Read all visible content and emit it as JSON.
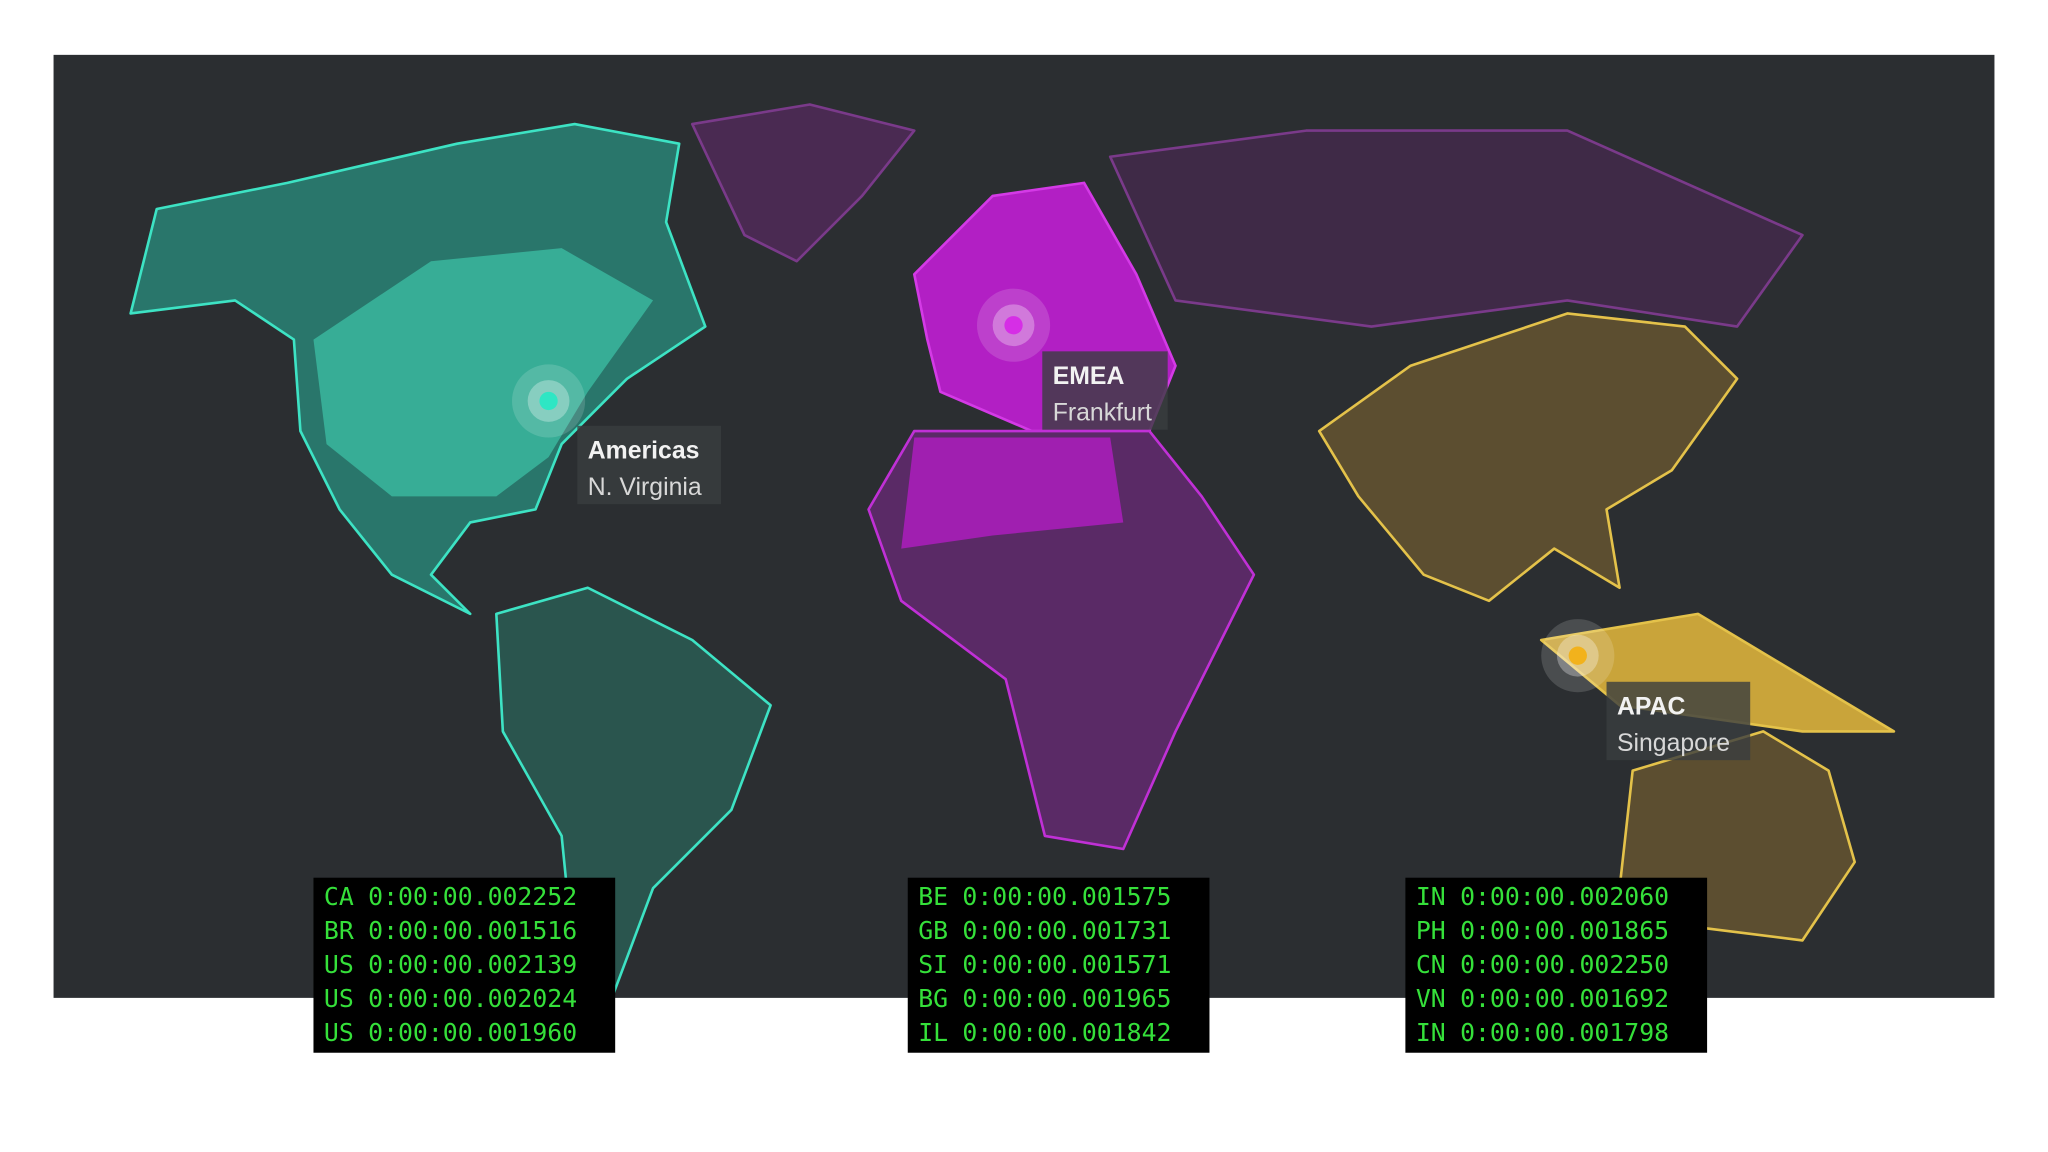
{
  "regions": [
    {
      "name": "Americas",
      "city": "N. Virginia",
      "log": [
        {
          "country": "CA",
          "time": "0:00:00.002252"
        },
        {
          "country": "BR",
          "time": "0:00:00.001516"
        },
        {
          "country": "US",
          "time": "0:00:00.002139"
        },
        {
          "country": "US",
          "time": "0:00:00.002024"
        },
        {
          "country": "US",
          "time": "0:00:00.001960"
        }
      ]
    },
    {
      "name": "EMEA",
      "city": "Frankfurt",
      "log": [
        {
          "country": "BE",
          "time": "0:00:00.001575"
        },
        {
          "country": "GB",
          "time": "0:00:00.001731"
        },
        {
          "country": "SI",
          "time": "0:00:00.001571"
        },
        {
          "country": "BG",
          "time": "0:00:00.001965"
        },
        {
          "country": "IL",
          "time": "0:00:00.001842"
        }
      ]
    },
    {
      "name": "APAC",
      "city": "Singapore",
      "log": [
        {
          "country": "IN",
          "time": "0:00:00.002060"
        },
        {
          "country": "PH",
          "time": "0:00:00.001865"
        },
        {
          "country": "CN",
          "time": "0:00:00.002250"
        },
        {
          "country": "VN",
          "time": "0:00:00.001692"
        },
        {
          "country": "IN",
          "time": "0:00:00.001798"
        }
      ]
    }
  ]
}
